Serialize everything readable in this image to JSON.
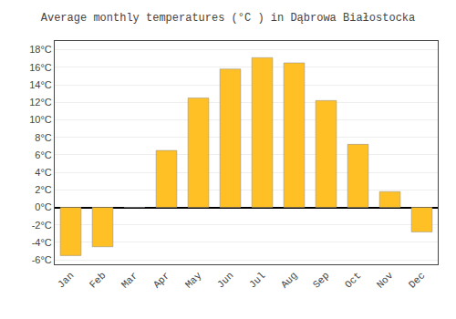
{
  "chart_data": {
    "type": "bar",
    "title": "Average monthly temperatures (°C ) in Dąbrowa Białostocka",
    "categories": [
      "Jan",
      "Feb",
      "Mar",
      "Apr",
      "May",
      "Jun",
      "Jul",
      "Aug",
      "Sep",
      "Oct",
      "Nov",
      "Dec"
    ],
    "values": [
      -5.5,
      -4.5,
      0.0,
      6.5,
      12.5,
      15.8,
      17.1,
      16.5,
      12.2,
      7.2,
      1.8,
      -2.8
    ],
    "color": "#FFC025",
    "ylim": [
      -6.5,
      19
    ],
    "yticks": [
      {
        "value": -6,
        "label": "-6°C"
      },
      {
        "value": -4,
        "label": "-4°C"
      },
      {
        "value": -2,
        "label": "-2°C"
      },
      {
        "value": 0,
        "label": "0°C"
      },
      {
        "value": 2,
        "label": "2°C"
      },
      {
        "value": 4,
        "label": "4°C"
      },
      {
        "value": 6,
        "label": "6°C"
      },
      {
        "value": 8,
        "label": "8°C"
      },
      {
        "value": 10,
        "label": "10°C"
      },
      {
        "value": 12,
        "label": "12°C"
      },
      {
        "value": 14,
        "label": "14°C"
      },
      {
        "value": 16,
        "label": "16°C"
      },
      {
        "value": 18,
        "label": "18°C"
      }
    ],
    "grid": true
  }
}
